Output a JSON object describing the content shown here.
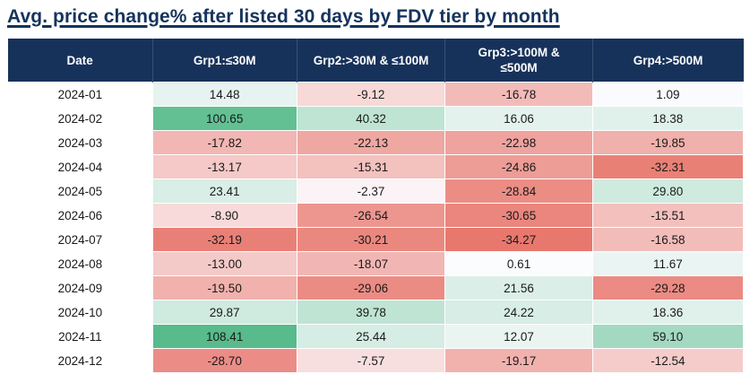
{
  "title": "Avg. price change% after listed 30 days by FDV tier by month",
  "table": {
    "columns": [
      "Date",
      "Grp1:≤30M",
      "Grp2:>30M & ≤100M",
      "Grp3:>100M & ≤500M",
      "Grp4:>500M"
    ]
  },
  "chart_data": {
    "type": "heatmap",
    "title": "Avg. price change% after listed 30 days by FDV tier by month",
    "row_axis_label": "Date",
    "rows": [
      "2024-01",
      "2024-02",
      "2024-03",
      "2024-04",
      "2024-05",
      "2024-06",
      "2024-07",
      "2024-08",
      "2024-09",
      "2024-10",
      "2024-11",
      "2024-12"
    ],
    "columns": [
      "Grp1:≤30M",
      "Grp2:>30M & ≤100M",
      "Grp3:>100M & ≤500M",
      "Grp4:>500M"
    ],
    "values": [
      [
        14.48,
        -9.12,
        -16.78,
        1.09
      ],
      [
        100.65,
        40.32,
        16.06,
        18.38
      ],
      [
        -17.82,
        -22.13,
        -22.98,
        -19.85
      ],
      [
        -13.17,
        -15.31,
        -24.86,
        -32.31
      ],
      [
        23.41,
        -2.37,
        -28.84,
        29.8
      ],
      [
        -8.9,
        -26.54,
        -30.65,
        -15.51
      ],
      [
        -32.19,
        -30.21,
        -34.27,
        -16.58
      ],
      [
        -13.0,
        -18.07,
        0.61,
        11.67
      ],
      [
        -19.5,
        -29.06,
        21.56,
        -29.28
      ],
      [
        29.87,
        39.78,
        24.22,
        18.36
      ],
      [
        108.41,
        25.44,
        12.07,
        59.1
      ],
      [
        -28.7,
        -7.57,
        -19.17,
        -12.54
      ]
    ],
    "value_format": "2-decimals",
    "legend": "none",
    "color_scale": {
      "negative_color": "#E8786E",
      "neutral_color": "#FCFCFF",
      "positive_color": "#57BB8B",
      "domain_min": -34.27,
      "domain_mid": 0,
      "domain_max": 108.41
    }
  },
  "colors": {
    "header_bg": "#17325A",
    "header_text": "#FFFFFF",
    "title_color": "#15335C",
    "cell_text": "#1A1A1A",
    "background": "#FFFFFF"
  }
}
